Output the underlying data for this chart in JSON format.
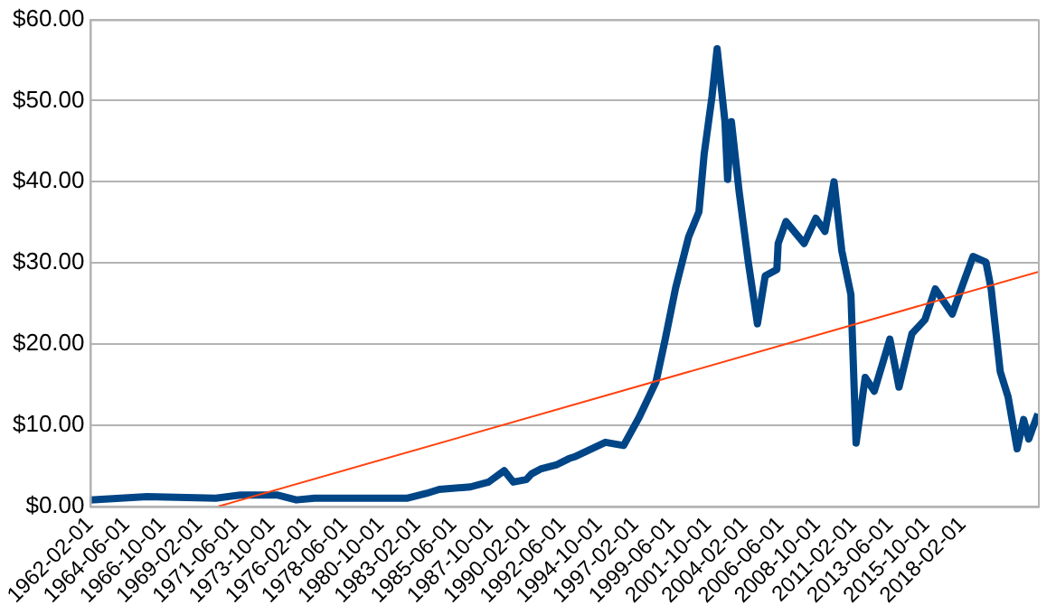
{
  "chart_data": {
    "type": "line",
    "x": [
      "1962-02",
      "1965-10",
      "1970-03",
      "1971-10",
      "1974-02",
      "1975-05",
      "1976-07",
      "1982-06",
      "1983-09",
      "1984-07",
      "1986-07",
      "1987-09",
      "1988-09",
      "1989-04",
      "1990-02",
      "1990-06",
      "1991-01",
      "1992-01",
      "1992-11",
      "1993-03",
      "1995-03",
      "1996-05",
      "1997-05",
      "1998-06",
      "1999-01",
      "1999-09",
      "2000-07",
      "2001-03",
      "2001-07",
      "2002-01",
      "2002-05",
      "2002-11",
      "2003-01",
      "2003-04",
      "2003-10",
      "2004-05",
      "2004-12",
      "2005-06",
      "2006-03",
      "2006-04",
      "2006-10",
      "2007-12",
      "2008-09",
      "2009-04",
      "2009-11",
      "2010-05",
      "2010-12",
      "2011-04",
      "2011-11",
      "2012-06",
      "2013-06",
      "2014-01",
      "2014-11",
      "2015-09",
      "2016-05",
      "2017-06",
      "2018-03",
      "2018-10",
      "2019-08",
      "2019-12",
      "2020-07",
      "2021-01",
      "2021-08",
      "2022-01",
      "2022-05",
      "2022-12"
    ],
    "series": [
      {
        "color": "#004586",
        "values": [
          0.8,
          1.2,
          1.0,
          1.4,
          1.4,
          0.8,
          1.0,
          1.0,
          1.6,
          2.1,
          2.4,
          3.0,
          4.4,
          3.0,
          3.3,
          4.0,
          4.6,
          5.1,
          5.9,
          6.1,
          7.9,
          7.5,
          11,
          15.4,
          20.6,
          26.9,
          33.2,
          36.3,
          43.4,
          50.5,
          56.4,
          47.4,
          40.3,
          47.4,
          38.7,
          30.1,
          22.5,
          28.4,
          29.2,
          32.4,
          35.1,
          32.4,
          35.5,
          33.9,
          40.0,
          31.5,
          26.1,
          7.8,
          15.9,
          14.2,
          20.6,
          14.7,
          21.3,
          23.0,
          26.8,
          23.7,
          27.7,
          30.8,
          30.1,
          26.8,
          16.6,
          13.5,
          7.1,
          10.7,
          8.3,
          11.4
        ]
      },
      {
        "type": "line",
        "color": "#ff420e",
        "x": [
          "1970-05",
          "2022-12"
        ],
        "values": [
          0,
          28.9
        ]
      }
    ],
    "xlim": [
      "1962-02",
      "2022-12"
    ],
    "xticks": [
      "1962-02-01",
      "1964-06-01",
      "1966-10-01",
      "1969-02-01",
      "1971-06-01",
      "1973-10-01",
      "1976-02-01",
      "1978-06-01",
      "1980-10-01",
      "1983-02-01",
      "1985-06-01",
      "1987-10-01",
      "1990-02-01",
      "1992-06-01",
      "1994-10-01",
      "1997-02-01",
      "1999-06-01",
      "2001-10-01",
      "2004-02-01",
      "2006-06-01",
      "2008-10-01",
      "2011-02-01",
      "2013-06-01",
      "2015-10-01",
      "2018-02-01"
    ],
    "ylim": [
      0,
      60
    ],
    "yticks": [
      {
        "value": 0,
        "label": "$0.00"
      },
      {
        "value": 10,
        "label": "$10.00"
      },
      {
        "value": 20,
        "label": "$20.00"
      },
      {
        "value": 30,
        "label": "$30.00"
      },
      {
        "value": 40,
        "label": "$40.00"
      },
      {
        "value": 50,
        "label": "$50.00"
      },
      {
        "value": 60,
        "label": "$60.00"
      }
    ],
    "grid": "y",
    "legend": false,
    "marker": "none",
    "line_style": "solid"
  }
}
